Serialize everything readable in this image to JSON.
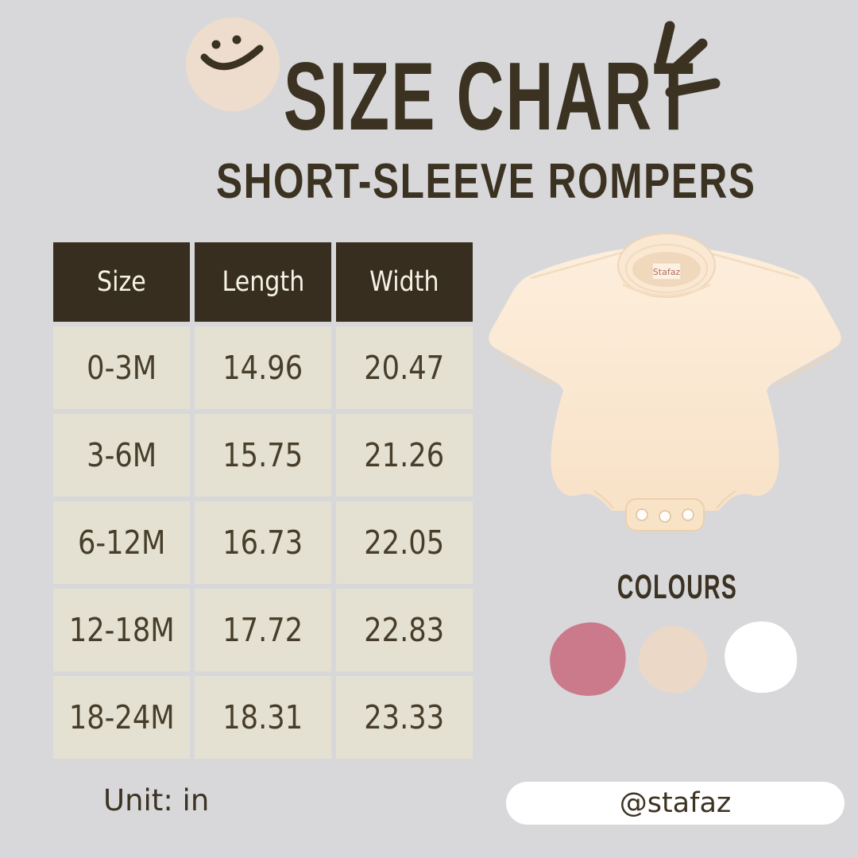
{
  "page": {
    "background": "#d8d8da",
    "title": "SIZE CHART",
    "subtitle": "SHORT-SLEEVE ROMPERS"
  },
  "chart_data": {
    "type": "table",
    "title": "SIZE CHART",
    "subtitle": "SHORT-SLEEVE ROMPERS",
    "unit": "in",
    "columns": [
      "Size",
      "Length",
      "Width"
    ],
    "rows": [
      [
        "0-3M",
        "14.96",
        "20.47"
      ],
      [
        "3-6M",
        "15.75",
        "21.26"
      ],
      [
        "6-12M",
        "16.73",
        "22.05"
      ],
      [
        "12-18M",
        "17.72",
        "22.83"
      ],
      [
        "18-24M",
        "18.31",
        "23.33"
      ]
    ]
  },
  "table": {
    "unit_label": "Unit: in"
  },
  "colours": {
    "heading": "COLOURS",
    "swatches": [
      {
        "name": "rose-pink",
        "hex": "#ca7a8b"
      },
      {
        "name": "cream-beige",
        "hex": "#ecd8c6"
      },
      {
        "name": "white",
        "hex": "#ffffff"
      }
    ]
  },
  "romper": {
    "neck_label": "Stafaz",
    "fabric_color": "#fbe8d3"
  },
  "footer": {
    "handle": "@stafaz"
  },
  "theme": {
    "ink_brown": "#3b3222",
    "header_bg": "#372e20",
    "header_text": "#f6f2e5",
    "cell_bg": "#e4e1d2",
    "cell_text": "#473d2a",
    "smiley_bg": "#eeddcc",
    "pill_bg": "#ffffff",
    "background": "#d8d8da"
  }
}
